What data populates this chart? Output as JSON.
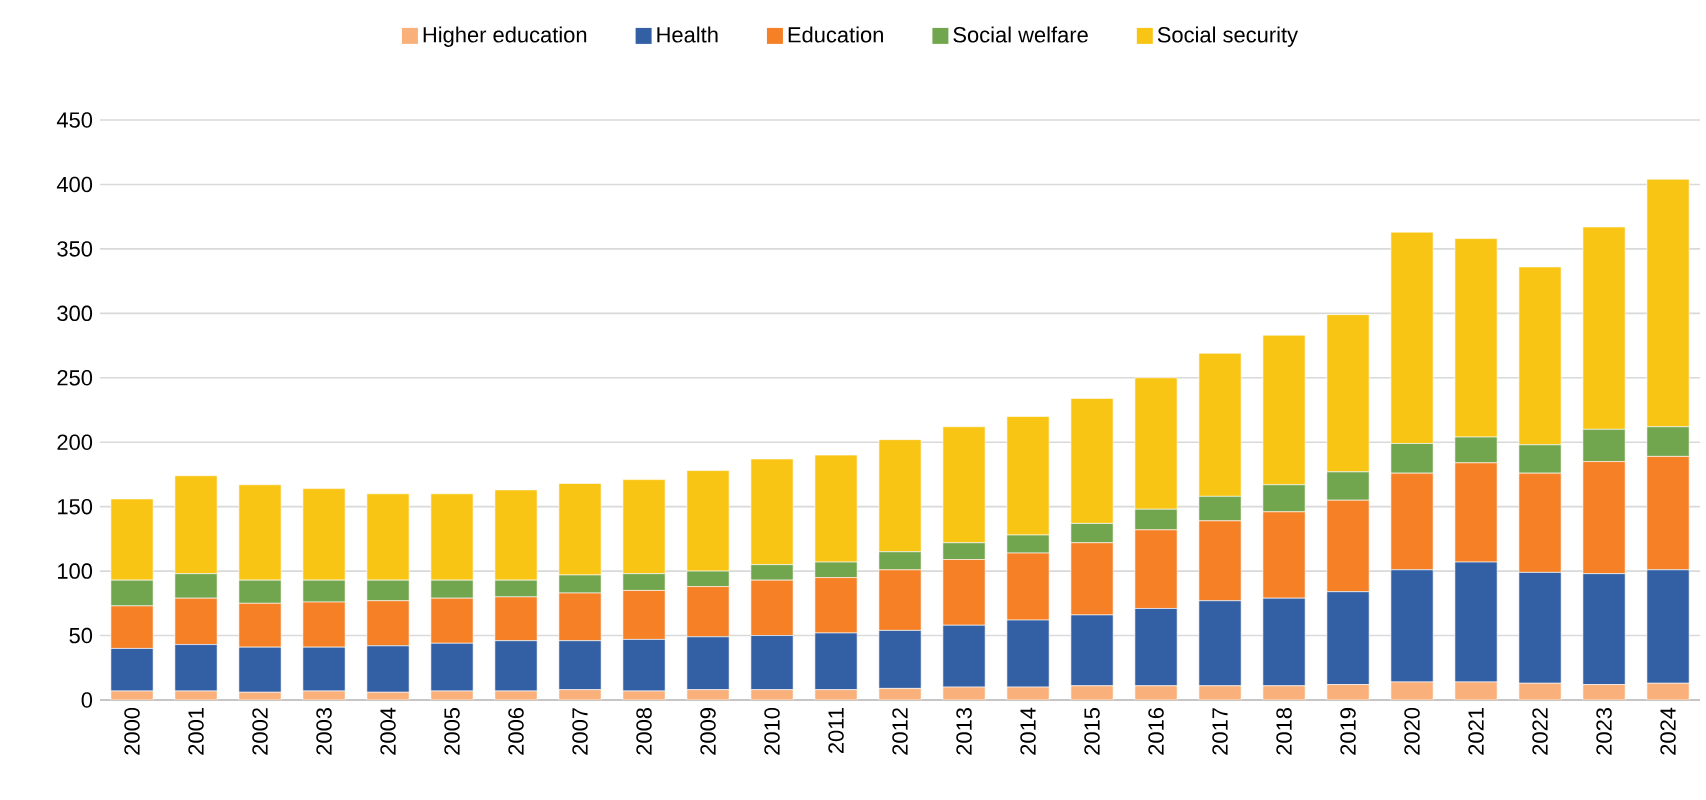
{
  "chart_data": {
    "type": "bar",
    "stacked": true,
    "grid": "y",
    "legend": "top",
    "marker": "square",
    "categories": [
      "2000",
      "2001",
      "2002",
      "2003",
      "2004",
      "2005",
      "2006",
      "2007",
      "2008",
      "2009",
      "2010",
      "2011",
      "2012",
      "2013",
      "2014",
      "2015",
      "2016",
      "2017",
      "2018",
      "2019",
      "2020",
      "2021",
      "2022",
      "2023",
      "2024"
    ],
    "ylim": [
      0,
      450
    ],
    "yticks": [
      0,
      50,
      100,
      150,
      200,
      250,
      300,
      350,
      400,
      450
    ],
    "series": [
      {
        "name": "Higher education",
        "color": "#f9b07a",
        "values": [
          7,
          7,
          6,
          7,
          6,
          7,
          7,
          8,
          7,
          8,
          8,
          8,
          9,
          10,
          10,
          11,
          11,
          11,
          11,
          12,
          14,
          14,
          13,
          12,
          13
        ]
      },
      {
        "name": "Health",
        "color": "#335fa4",
        "values": [
          33,
          36,
          35,
          34,
          36,
          37,
          39,
          38,
          40,
          41,
          42,
          44,
          45,
          48,
          52,
          55,
          60,
          66,
          68,
          72,
          87,
          93,
          86,
          86,
          88
        ]
      },
      {
        "name": "Education",
        "color": "#f58025",
        "values": [
          33,
          36,
          34,
          35,
          35,
          35,
          34,
          37,
          38,
          39,
          43,
          43,
          47,
          51,
          52,
          56,
          61,
          62,
          67,
          71,
          75,
          77,
          77,
          87,
          88
        ]
      },
      {
        "name": "Social welfare",
        "color": "#71a64f",
        "values": [
          20,
          19,
          18,
          17,
          16,
          14,
          13,
          14,
          13,
          12,
          12,
          12,
          14,
          13,
          14,
          15,
          16,
          19,
          21,
          22,
          23,
          20,
          22,
          25,
          23
        ]
      },
      {
        "name": "Social security",
        "color": "#f9c515",
        "values": [
          63,
          76,
          74,
          71,
          67,
          67,
          70,
          71,
          73,
          78,
          82,
          83,
          87,
          90,
          92,
          97,
          102,
          111,
          116,
          122,
          164,
          154,
          138,
          157,
          192
        ]
      }
    ]
  }
}
